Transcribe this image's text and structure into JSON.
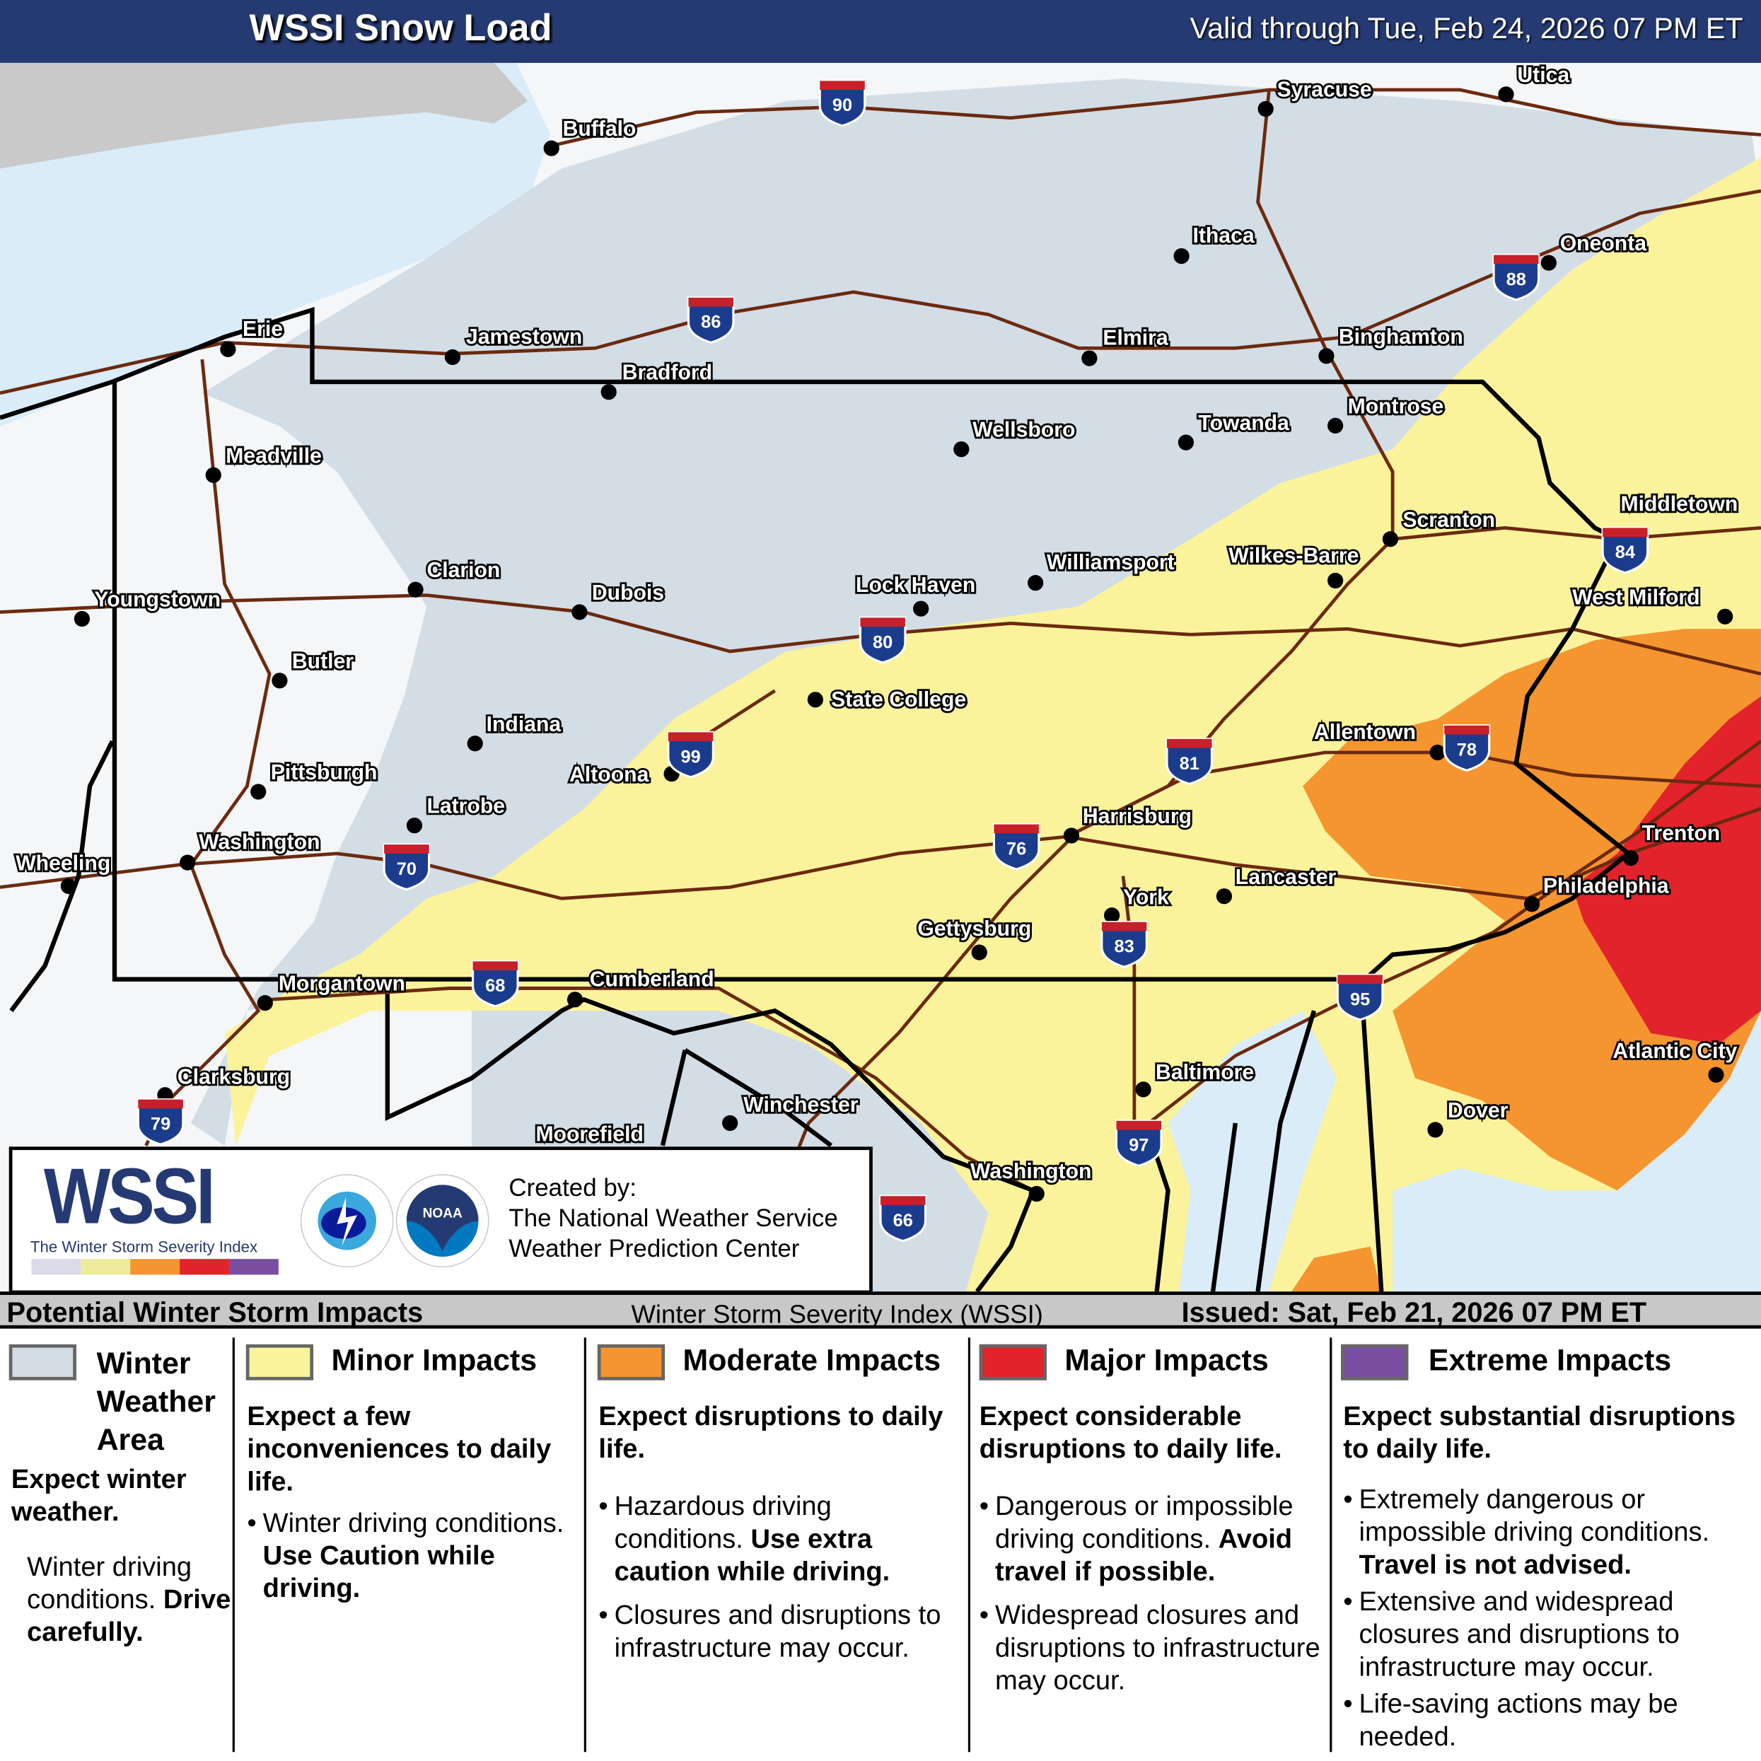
{
  "header": {
    "title": "WSSI Snow Load",
    "valid": "Valid through Tue, Feb 24, 2026 07 PM ET"
  },
  "colors": {
    "header": "#253a72",
    "winter": "#d3dde5",
    "minor": "#faf39c",
    "moderate": "#f5952f",
    "major": "#e3232b",
    "extreme": "#7a4fa1",
    "water": "#d9ecf7",
    "land": "#f4f6f8",
    "road": "#6b2a0f"
  },
  "cities": [
    "Syracuse",
    "Utica",
    "Buffalo",
    "Ithaca",
    "Oneonta",
    "Erie",
    "Jamestown",
    "Bradford",
    "Elmira",
    "Binghamton",
    "Montrose",
    "Wellsboro",
    "Towanda",
    "Meadville",
    "Middletown",
    "West Milford",
    "Scranton",
    "Wilkes-Barre",
    "Williamsport",
    "Lock Haven",
    "Clarion",
    "Dubois",
    "Youngstown",
    "Butler",
    "State College",
    "Indiana",
    "Allentown",
    "Pittsburgh",
    "Altoona",
    "Latrobe",
    "Harrisburg",
    "Trenton",
    "Washington",
    "Wheeling",
    "Lancaster",
    "York",
    "Philadelphia",
    "Gettysburg",
    "Morgantown",
    "Cumberland",
    "Atlantic City",
    "Baltimore",
    "Clarksburg",
    "Winchester",
    "Dover",
    "Moorefield",
    "Washington"
  ],
  "interstates": [
    "90",
    "86",
    "88",
    "84",
    "80",
    "99",
    "81",
    "78",
    "76",
    "70",
    "83",
    "68",
    "95",
    "97",
    "79",
    "66"
  ],
  "credit": {
    "logo": "WSSI",
    "logo_sub": "The Winter Storm Severity Index",
    "nws_logo": "NATIONAL WEATHER SERVICE",
    "noaa_logo": "NOAA",
    "line1": "Created by:",
    "line2": "The National Weather Service",
    "line3": "Weather Prediction Center"
  },
  "legend_bar": {
    "left": "Potential Winter Storm Impacts",
    "center": "Winter Storm Severity Index (WSSI)",
    "right": "Issued: Sat, Feb 21, 2026 07 PM ET"
  },
  "legend": {
    "winter": {
      "title": "Winter Weather Area",
      "head": "Expect winter weather.",
      "b1": "Winter driving conditions.",
      "b1_bold": "Drive carefully."
    },
    "minor": {
      "title": "Minor Impacts",
      "head": "Expect a few inconveniences to daily life.",
      "b1": "Winter driving conditions.",
      "b1_bold": "Use Caution while driving."
    },
    "moderate": {
      "title": "Moderate Impacts",
      "head": "Expect disruptions to daily life.",
      "b1": "Hazardous driving conditions.",
      "b1_bold": "Use extra caution while driving.",
      "b2": "Closures and disruptions to infrastructure may occur."
    },
    "major": {
      "title": "Major Impacts",
      "head": "Expect considerable disruptions to daily life.",
      "b1": "Dangerous or impossible driving conditions.",
      "b1_bold": "Avoid travel if possible.",
      "b2": "Widespread closures and disruptions to infrastructure may occur."
    },
    "extreme": {
      "title": "Extreme Impacts",
      "head": "Expect substantial disruptions to daily life.",
      "b1": "Extremely dangerous or impossible driving conditions.",
      "b1_bold": "Travel is not advised.",
      "b2": "Extensive and widespread closures and disruptions to infrastructure may occur.",
      "b3": "Life-saving actions may be needed."
    }
  }
}
